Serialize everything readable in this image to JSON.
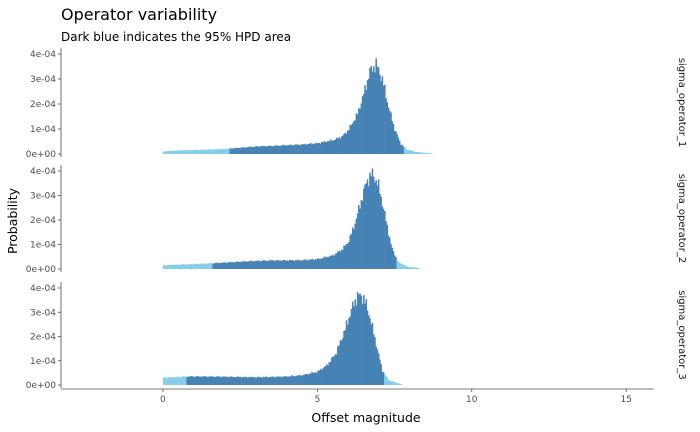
{
  "chart_data": {
    "type": "bar",
    "title": "Operator variability",
    "subtitle": "Dark blue indicates the 95% HPD area",
    "xlabel": "Offset magnitude",
    "ylabel": "Probability",
    "xlim": [
      -3.3,
      15.9
    ],
    "ylim": [
      0,
      0.0004
    ],
    "x_ticks": [
      0,
      5,
      10,
      15
    ],
    "x_tick_labels": [
      "0",
      "5",
      "10",
      "15"
    ],
    "y_ticks": [
      0,
      0.0001,
      0.0002,
      0.0003,
      0.0004
    ],
    "y_tick_labels": [
      "0e+00",
      "1e-04",
      "2e-04",
      "3e-04",
      "4e-04"
    ],
    "grid": false,
    "colors": {
      "hpd": "#4682b4",
      "outside": "#87ceeb"
    },
    "series": [
      {
        "name": "sigma_operator_1",
        "range": [
          0,
          8.7
        ],
        "hpd": [
          2.15,
          7.8
        ],
        "density": [
          [
            0.0,
            1e-05
          ],
          [
            0.5,
            1.4e-05
          ],
          [
            1.0,
            1.6e-05
          ],
          [
            1.5,
            1.8e-05
          ],
          [
            2.0,
            2e-05
          ],
          [
            2.5,
            2.5e-05
          ],
          [
            3.0,
            3e-05
          ],
          [
            3.5,
            3.2e-05
          ],
          [
            4.0,
            3.5e-05
          ],
          [
            4.5,
            3.8e-05
          ],
          [
            5.0,
            4.3e-05
          ],
          [
            5.5,
            5.5e-05
          ],
          [
            5.8,
            7e-05
          ],
          [
            6.0,
            9.5e-05
          ],
          [
            6.3,
            0.00016
          ],
          [
            6.5,
            0.00024
          ],
          [
            6.7,
            0.00033
          ],
          [
            6.9,
            0.00036
          ],
          [
            7.1,
            0.0003
          ],
          [
            7.3,
            0.00019
          ],
          [
            7.5,
            0.0001
          ],
          [
            7.7,
            4e-05
          ],
          [
            7.9,
            1.8e-05
          ],
          [
            8.2,
            8e-06
          ],
          [
            8.7,
            2e-06
          ]
        ]
      },
      {
        "name": "sigma_operator_2",
        "range": [
          0,
          8.3
        ],
        "hpd": [
          1.6,
          7.55
        ],
        "density": [
          [
            0.0,
            1.5e-05
          ],
          [
            0.5,
            1.8e-05
          ],
          [
            1.0,
            2e-05
          ],
          [
            1.5,
            2.3e-05
          ],
          [
            2.0,
            2.6e-05
          ],
          [
            2.5,
            3e-05
          ],
          [
            3.0,
            3.3e-05
          ],
          [
            3.5,
            3.5e-05
          ],
          [
            4.0,
            3.5e-05
          ],
          [
            4.5,
            3.6e-05
          ],
          [
            5.0,
            4e-05
          ],
          [
            5.5,
            5.5e-05
          ],
          [
            5.8,
            8e-05
          ],
          [
            6.0,
            0.00011
          ],
          [
            6.2,
            0.00018
          ],
          [
            6.4,
            0.00027
          ],
          [
            6.6,
            0.00036
          ],
          [
            6.8,
            0.00039
          ],
          [
            7.0,
            0.00033
          ],
          [
            7.2,
            0.00021
          ],
          [
            7.4,
            9e-05
          ],
          [
            7.6,
            3e-05
          ],
          [
            7.9,
            1e-05
          ],
          [
            8.3,
            3e-06
          ]
        ]
      },
      {
        "name": "sigma_operator_3",
        "range": [
          0,
          7.7
        ],
        "hpd": [
          0.75,
          7.15
        ],
        "density": [
          [
            0.0,
            3e-05
          ],
          [
            0.3,
            3.2e-05
          ],
          [
            0.8,
            3.5e-05
          ],
          [
            1.5,
            3.5e-05
          ],
          [
            2.0,
            3.4e-05
          ],
          [
            2.5,
            3.3e-05
          ],
          [
            3.0,
            3.2e-05
          ],
          [
            3.5,
            3.3e-05
          ],
          [
            4.0,
            3.5e-05
          ],
          [
            4.5,
            4e-05
          ],
          [
            5.0,
            5.5e-05
          ],
          [
            5.3,
            8e-05
          ],
          [
            5.6,
            0.00013
          ],
          [
            5.9,
            0.00023
          ],
          [
            6.1,
            0.00031
          ],
          [
            6.3,
            0.00037
          ],
          [
            6.5,
            0.00036
          ],
          [
            6.7,
            0.00028
          ],
          [
            6.9,
            0.00017
          ],
          [
            7.1,
            6e-05
          ],
          [
            7.3,
            2e-05
          ],
          [
            7.7,
            4e-06
          ]
        ]
      }
    ]
  }
}
